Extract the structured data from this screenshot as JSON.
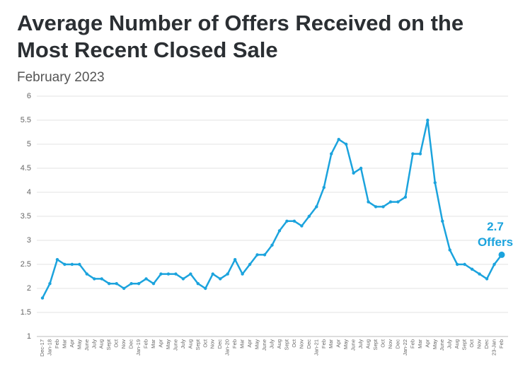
{
  "chart_data": {
    "type": "line",
    "title": "Average Number of Offers Received on the Most Recent Closed Sale",
    "subtitle": "February 2023",
    "annotation": "2.7 Offers",
    "categories": [
      "Dec-17",
      "Jan-18",
      "Feb",
      "Mar",
      "Apr",
      "May",
      "June",
      "July",
      "Aug",
      "Sept",
      "Oct",
      "Nov",
      "Dec",
      "Jan-19",
      "Feb",
      "Mar",
      "Apr",
      "May",
      "June",
      "July",
      "Aug",
      "Sept",
      "Oct",
      "Nov",
      "Dec",
      "Jan-20",
      "Feb",
      "Mar",
      "Apr",
      "May",
      "June",
      "July",
      "Aug",
      "Sept",
      "Oct",
      "Nov",
      "Dec",
      "Jan-21",
      "Feb",
      "Mar",
      "Apr",
      "May",
      "June",
      "July",
      "Aug",
      "Sept",
      "Oct",
      "Nov",
      "Dec",
      "Jan-22",
      "Feb",
      "Mar",
      "Apr",
      "May",
      "June",
      "July",
      "Aug",
      "Sept",
      "Oct",
      "Nov",
      "Dec",
      "23-Jan",
      "Feb"
    ],
    "values": [
      1.8,
      2.1,
      2.6,
      2.5,
      2.5,
      2.5,
      2.3,
      2.2,
      2.2,
      2.1,
      2.1,
      2.0,
      2.1,
      2.1,
      2.2,
      2.1,
      2.3,
      2.3,
      2.3,
      2.2,
      2.3,
      2.1,
      2.0,
      2.3,
      2.2,
      2.3,
      2.6,
      2.3,
      2.5,
      2.7,
      2.7,
      2.9,
      3.2,
      3.4,
      3.4,
      3.3,
      3.5,
      3.7,
      4.1,
      4.8,
      5.1,
      5.0,
      4.4,
      4.5,
      3.8,
      3.7,
      3.7,
      3.8,
      3.8,
      3.9,
      4.8,
      4.8,
      5.5,
      4.2,
      3.4,
      2.8,
      2.5,
      2.5,
      2.4,
      2.3,
      2.2,
      2.5,
      2.7
    ],
    "color": "#1ba3dd",
    "ylim": [
      1,
      6
    ],
    "yticks": [
      1,
      1.5,
      2,
      2.5,
      3,
      3.5,
      4,
      4.5,
      5,
      5.5,
      6
    ],
    "grid": true
  }
}
